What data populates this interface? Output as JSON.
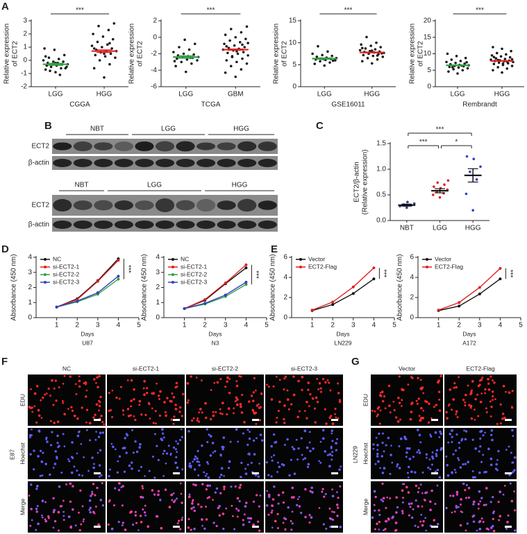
{
  "panel_labels": [
    "A",
    "B",
    "C",
    "D",
    "E",
    "F",
    "G"
  ],
  "chart_data": [
    {
      "type": "dot",
      "ylabel": [
        "Relative expression",
        "of ECT2"
      ],
      "caption": "CGGA",
      "ylim": [
        -2,
        3
      ],
      "yticks": [
        -2,
        -1,
        0,
        1,
        2,
        3
      ],
      "categories": [
        "LGG",
        "HGG"
      ],
      "groups": [
        {
          "point_color": "#1a1a1a",
          "mean_color": "#2fa043",
          "mean": -0.3,
          "sem": 0.08,
          "points": [
            -0.9,
            -0.7,
            -0.6,
            -0.5,
            -0.5,
            -0.4,
            -0.4,
            -0.3,
            -0.3,
            -0.3,
            -0.2,
            -0.2,
            -0.1,
            -0.1,
            0,
            0.1,
            0.2,
            0.4,
            0.8,
            0.9,
            -1.1,
            -0.8,
            -0.6,
            -0.2,
            0.3
          ]
        },
        {
          "point_color": "#1a1a1a",
          "mean_color": "#e02020",
          "mean": 0.7,
          "sem": 0.1,
          "points": [
            -1.3,
            -0.6,
            -0.3,
            0,
            0.2,
            0.3,
            0.4,
            0.5,
            0.6,
            0.7,
            0.7,
            0.8,
            0.9,
            1.0,
            1.1,
            1.2,
            1.4,
            1.6,
            1.8,
            2.0,
            2.3,
            2.6,
            2.8,
            0.5,
            0.9,
            1.3
          ]
        }
      ],
      "brackets": [
        {
          "between": [
            "LGG",
            "HGG"
          ],
          "label": "***"
        }
      ]
    },
    {
      "type": "dot",
      "ylabel": [
        "Relative expression",
        "of ECT2"
      ],
      "caption": "TCGA",
      "ylim": [
        -6,
        2
      ],
      "yticks": [
        -6,
        -4,
        -2,
        0,
        2
      ],
      "categories": [
        "LGG",
        "GBM"
      ],
      "groups": [
        {
          "point_color": "#1a1a1a",
          "mean_color": "#2fa043",
          "mean": -2.4,
          "sem": 0.15,
          "points": [
            -4.2,
            -3.5,
            -3.2,
            -3,
            -2.8,
            -2.7,
            -2.6,
            -2.5,
            -2.4,
            -2.4,
            -2.3,
            -2.2,
            -2.1,
            -2,
            -1.8,
            -1.5,
            -1.2,
            -0.8,
            -0.3,
            -2.9,
            -2.5
          ]
        },
        {
          "point_color": "#1a1a1a",
          "mean_color": "#e02020",
          "mean": -1.5,
          "sem": 0.08,
          "points": [
            -4.8,
            -4.3,
            -3.9,
            -3.5,
            -3.2,
            -3,
            -2.8,
            -2.6,
            -2.4,
            -2.2,
            -2,
            -1.9,
            -1.8,
            -1.6,
            -1.5,
            -1.4,
            -1.3,
            -1.2,
            -1,
            -0.8,
            -0.6,
            -0.4,
            -0.2,
            0,
            0.3,
            0.6,
            1.0,
            1.3,
            -1.7,
            -1.1,
            -0.9,
            -2.3,
            -0.7,
            -1.5
          ]
        }
      ],
      "brackets": [
        {
          "between": [
            "LGG",
            "GBM"
          ],
          "label": "***"
        }
      ]
    },
    {
      "type": "dot",
      "ylabel": [
        "Relative expression",
        "of ECT2"
      ],
      "caption": "GSE16011",
      "ylim": [
        0,
        15
      ],
      "yticks": [
        0,
        5,
        10,
        15
      ],
      "categories": [
        "LGG",
        "HGG"
      ],
      "groups": [
        {
          "point_color": "#1a1a1a",
          "mean_color": "#2fa043",
          "mean": 6.4,
          "sem": 0.15,
          "points": [
            4.8,
            5.2,
            5.5,
            5.8,
            6,
            6.1,
            6.2,
            6.3,
            6.4,
            6.5,
            6.6,
            6.8,
            7,
            7.2,
            7.5,
            8,
            9.2,
            5.9,
            6.3
          ]
        },
        {
          "point_color": "#1a1a1a",
          "mean_color": "#e02020",
          "mean": 7.8,
          "sem": 0.1,
          "points": [
            5.3,
            5.8,
            6.2,
            6.5,
            6.8,
            7,
            7.2,
            7.4,
            7.5,
            7.7,
            7.8,
            7.9,
            8,
            8.1,
            8.3,
            8.5,
            8.7,
            9,
            9.3,
            9.6,
            10,
            11.3,
            7.6,
            8.2,
            8.8,
            7.1
          ]
        }
      ],
      "brackets": [
        {
          "between": [
            "LGG",
            "HGG"
          ],
          "label": "***"
        }
      ]
    },
    {
      "type": "dot",
      "ylabel": [
        "Relative expression",
        "of ECT2"
      ],
      "caption": "Rembrandt",
      "ylim": [
        0,
        20
      ],
      "yticks": [
        0,
        5,
        10,
        15,
        20
      ],
      "categories": [
        "LGG",
        "HGG"
      ],
      "groups": [
        {
          "point_color": "#1a1a1a",
          "mean_color": "#2fa043",
          "mean": 6.5,
          "sem": 0.12,
          "points": [
            4,
            4.6,
            5,
            5.3,
            5.6,
            5.8,
            6,
            6.2,
            6.3,
            6.5,
            6.6,
            6.8,
            7,
            7.2,
            7.5,
            7.8,
            8.2,
            8.7,
            9.3,
            10,
            6.4,
            5.9,
            7.4
          ]
        },
        {
          "point_color": "#1a1a1a",
          "mean_color": "#e02020",
          "mean": 7.8,
          "sem": 0.1,
          "points": [
            4.3,
            5,
            5.5,
            5.9,
            6.3,
            6.6,
            6.9,
            7.1,
            7.3,
            7.5,
            7.7,
            7.8,
            7.9,
            8,
            8.2,
            8.4,
            8.6,
            8.9,
            9.2,
            9.5,
            9.8,
            10.2,
            10.8,
            11.5,
            12,
            7.6,
            8.1,
            8.3,
            7,
            9
          ]
        }
      ],
      "brackets": [
        {
          "between": [
            "LGG",
            "HGG"
          ],
          "label": "***"
        }
      ]
    },
    {
      "type": "dot",
      "ylabel": [
        "ECT2/β-actin",
        "(Relative expression)"
      ],
      "ylim": [
        0,
        1.5
      ],
      "yticks": [
        {
          "value": 0,
          "label": "0.0"
        },
        {
          "value": 0.5,
          "label": "0.5"
        },
        {
          "value": 1,
          "label": "1.0"
        },
        {
          "value": 1.5,
          "label": "1.5"
        }
      ],
      "categories": [
        "NBT",
        "LGG",
        "HGG"
      ],
      "groups": [
        {
          "point_color": "#2a3f9a",
          "mean_color": "#111111",
          "mean": 0.3,
          "sem": 0.02,
          "points": [
            0.25,
            0.28,
            0.3,
            0.31,
            0.33,
            0.36
          ]
        },
        {
          "point_color": "#e02020",
          "mean_color": "#111111",
          "mean": 0.58,
          "sem": 0.04,
          "points": [
            0.45,
            0.5,
            0.53,
            0.56,
            0.6,
            0.63,
            0.66,
            0.7,
            0.74,
            0.78
          ]
        },
        {
          "point_color": "#2a3fd0",
          "mean_color": "#111111",
          "mean": 0.88,
          "sem": 0.13,
          "points": [
            0.2,
            0.52,
            0.8,
            0.95,
            1.05,
            1.2,
            1.25
          ]
        }
      ],
      "brackets": [
        {
          "between": [
            "NBT",
            "LGG"
          ],
          "label": "***"
        },
        {
          "between": [
            "LGG",
            "HGG"
          ],
          "label": "*"
        },
        {
          "between": [
            "NBT",
            "HGG"
          ],
          "label": "***"
        }
      ]
    },
    {
      "type": "line",
      "ylabel": "Absorbance (450 nm)",
      "xlabel": "Days",
      "caption": "U87",
      "x": [
        1,
        2,
        3,
        4
      ],
      "xlim": [
        0,
        5
      ],
      "xticks": [
        1,
        2,
        3,
        4,
        5
      ],
      "ylim": [
        0,
        4
      ],
      "yticks": [
        0,
        1,
        2,
        3,
        4
      ],
      "legend": "upper left",
      "significance": "***",
      "series": [
        {
          "name": "NC",
          "color": "#111111",
          "values": [
            0.7,
            1.25,
            2.45,
            3.9
          ]
        },
        {
          "name": "si-ECT2-1",
          "color": "#e02020",
          "values": [
            0.7,
            1.2,
            2.4,
            3.8
          ]
        },
        {
          "name": "si-ECT2-2",
          "color": "#2fa043",
          "values": [
            0.7,
            1.05,
            1.55,
            2.55
          ]
        },
        {
          "name": "si-ECT2-3",
          "color": "#3040c0",
          "values": [
            0.7,
            1.1,
            1.65,
            2.75
          ]
        }
      ]
    },
    {
      "type": "line",
      "ylabel": "Absorbance (450 nm)",
      "xlabel": "Days",
      "caption": "N3",
      "x": [
        1,
        2,
        3,
        4
      ],
      "xlim": [
        0,
        5
      ],
      "xticks": [
        1,
        2,
        3,
        4,
        5
      ],
      "ylim": [
        0,
        4
      ],
      "yticks": [
        0,
        1,
        2,
        3,
        4
      ],
      "legend": "upper left",
      "significance": "***",
      "series": [
        {
          "name": "NC",
          "color": "#111111",
          "values": [
            0.6,
            1.15,
            2.25,
            3.3
          ]
        },
        {
          "name": "si-ECT2-1",
          "color": "#e02020",
          "values": [
            0.6,
            1.2,
            2.3,
            3.5
          ]
        },
        {
          "name": "si-ECT2-2",
          "color": "#2fa043",
          "values": [
            0.6,
            0.9,
            1.4,
            2.2
          ]
        },
        {
          "name": "si-ECT2-3",
          "color": "#3040c0",
          "values": [
            0.6,
            0.95,
            1.5,
            2.35
          ]
        }
      ]
    },
    {
      "type": "line",
      "ylabel": "Absorbance (450 nm)",
      "xlabel": "Days",
      "caption": "LN229",
      "x": [
        1,
        2,
        3,
        4
      ],
      "xlim": [
        0,
        5
      ],
      "xticks": [
        1,
        2,
        3,
        4,
        5
      ],
      "ylim": [
        0,
        6
      ],
      "yticks": [
        0,
        2,
        4,
        6
      ],
      "legend": "upper left",
      "significance": "***",
      "series": [
        {
          "name": "Vector",
          "color": "#111111",
          "values": [
            0.7,
            1.3,
            2.4,
            3.85
          ]
        },
        {
          "name": "ECT2-Flag",
          "color": "#e02020",
          "values": [
            0.75,
            1.55,
            3.05,
            4.95
          ]
        }
      ]
    },
    {
      "type": "line",
      "ylabel": "Absorbance (450 nm)",
      "xlabel": "Days",
      "caption": "A172",
      "x": [
        1,
        2,
        3,
        4
      ],
      "xlim": [
        0,
        5
      ],
      "xticks": [
        1,
        2,
        3,
        4,
        5
      ],
      "ylim": [
        0,
        6
      ],
      "yticks": [
        0,
        2,
        4,
        6
      ],
      "legend": "upper left",
      "significance": "***",
      "series": [
        {
          "name": "Vector",
          "color": "#111111",
          "values": [
            0.7,
            1.15,
            2.35,
            3.85
          ]
        },
        {
          "name": "ECT2-Flag",
          "color": "#e02020",
          "values": [
            0.75,
            1.5,
            3.0,
            4.9
          ]
        }
      ]
    }
  ],
  "blots": [
    {
      "groups": [
        "NBT",
        "LGG",
        "HGG"
      ],
      "rows": [
        "ECT2",
        "β-actin"
      ]
    },
    {
      "groups": [
        "NBT",
        "LGG",
        "HGG"
      ],
      "rows": [
        "ECT2",
        "β-actin"
      ]
    }
  ],
  "images": [
    {
      "columns": [
        "NC",
        "si-ECT2-1",
        "si-ECT2-2",
        "si-ECT2-3"
      ],
      "rows": [
        "EDU",
        "Hoechst",
        "Merge"
      ],
      "cell_line": "E87"
    },
    {
      "columns": [
        "Vector",
        "ECT2-Flag"
      ],
      "rows": [
        "EDU",
        "Hoechst",
        "Merge"
      ],
      "cell_line": "LN229"
    }
  ]
}
